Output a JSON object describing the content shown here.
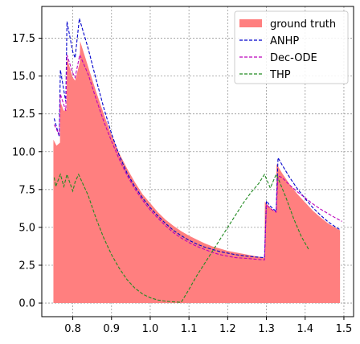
{
  "chart_data": {
    "type": "line",
    "xlim": [
      0.72,
      1.525
    ],
    "ylim": [
      -0.9,
      19.6
    ],
    "xticks": [
      {
        "value": 0.8,
        "label": "0.8"
      },
      {
        "value": 0.9,
        "label": "0.9"
      },
      {
        "value": 1.0,
        "label": "1.0"
      },
      {
        "value": 1.1,
        "label": "1.1"
      },
      {
        "value": 1.2,
        "label": "1.2"
      },
      {
        "value": 1.3,
        "label": "1.3"
      },
      {
        "value": 1.4,
        "label": "1.4"
      },
      {
        "value": 1.5,
        "label": "1.5"
      }
    ],
    "yticks": [
      {
        "value": 0.0,
        "label": "0.0"
      },
      {
        "value": 2.5,
        "label": "2.5"
      },
      {
        "value": 5.0,
        "label": "5.0"
      },
      {
        "value": 7.5,
        "label": "7.5"
      },
      {
        "value": 10.0,
        "label": "10.0"
      },
      {
        "value": 12.5,
        "label": "12.5"
      },
      {
        "value": 15.0,
        "label": "15.0"
      },
      {
        "value": 17.5,
        "label": "17.5"
      }
    ],
    "grid": true,
    "legend_position": "top-right",
    "series": [
      {
        "name": "ground truth",
        "style": "area",
        "color": "#ff7f7f",
        "points": [
          [
            0.75,
            10.8
          ],
          [
            0.758,
            10.4
          ],
          [
            0.767,
            10.6
          ],
          [
            0.768,
            13.3
          ],
          [
            0.777,
            12.7
          ],
          [
            0.784,
            12.8
          ],
          [
            0.785,
            16.2
          ],
          [
            0.8,
            14.9
          ],
          [
            0.806,
            14.7
          ],
          [
            0.818,
            15.9
          ],
          [
            0.819,
            17.3
          ],
          [
            0.84,
            15.6
          ],
          [
            0.86,
            14.0
          ],
          [
            0.88,
            12.5
          ],
          [
            0.9,
            11.1
          ],
          [
            0.92,
            9.9
          ],
          [
            0.94,
            8.9
          ],
          [
            0.96,
            8.0
          ],
          [
            0.98,
            7.2
          ],
          [
            1.0,
            6.6
          ],
          [
            1.02,
            6.0
          ],
          [
            1.04,
            5.5
          ],
          [
            1.06,
            5.1
          ],
          [
            1.08,
            4.75
          ],
          [
            1.1,
            4.45
          ],
          [
            1.12,
            4.2
          ],
          [
            1.14,
            3.95
          ],
          [
            1.16,
            3.75
          ],
          [
            1.18,
            3.6
          ],
          [
            1.2,
            3.45
          ],
          [
            1.22,
            3.35
          ],
          [
            1.25,
            3.2
          ],
          [
            1.27,
            3.1
          ],
          [
            1.295,
            3.0
          ],
          [
            1.296,
            6.7
          ],
          [
            1.31,
            6.3
          ],
          [
            1.32,
            6.1
          ],
          [
            1.325,
            6.0
          ],
          [
            1.326,
            9.2
          ],
          [
            1.34,
            8.6
          ],
          [
            1.36,
            7.85
          ],
          [
            1.38,
            7.2
          ],
          [
            1.4,
            6.65
          ],
          [
            1.42,
            6.1
          ],
          [
            1.44,
            5.65
          ],
          [
            1.46,
            5.25
          ],
          [
            1.48,
            4.95
          ],
          [
            1.49,
            4.8
          ]
        ]
      },
      {
        "name": "ANHP",
        "style": "dashed",
        "color": "#0000cc",
        "points": [
          [
            0.752,
            12.2
          ],
          [
            0.765,
            11.0
          ],
          [
            0.768,
            15.4
          ],
          [
            0.782,
            13.3
          ],
          [
            0.785,
            18.6
          ],
          [
            0.8,
            16.6
          ],
          [
            0.806,
            16.2
          ],
          [
            0.817,
            18.8
          ],
          [
            0.84,
            16.8
          ],
          [
            0.86,
            14.8
          ],
          [
            0.88,
            12.9
          ],
          [
            0.9,
            11.2
          ],
          [
            0.92,
            9.75
          ],
          [
            0.94,
            8.6
          ],
          [
            0.96,
            7.7
          ],
          [
            0.98,
            6.95
          ],
          [
            1.0,
            6.3
          ],
          [
            1.02,
            5.75
          ],
          [
            1.04,
            5.25
          ],
          [
            1.06,
            4.8
          ],
          [
            1.08,
            4.45
          ],
          [
            1.1,
            4.15
          ],
          [
            1.12,
            3.9
          ],
          [
            1.14,
            3.7
          ],
          [
            1.16,
            3.55
          ],
          [
            1.18,
            3.4
          ],
          [
            1.2,
            3.3
          ],
          [
            1.22,
            3.2
          ],
          [
            1.25,
            3.1
          ],
          [
            1.27,
            3.05
          ],
          [
            1.295,
            3.0
          ],
          [
            1.3,
            6.75
          ],
          [
            1.31,
            6.4
          ],
          [
            1.325,
            6.05
          ],
          [
            1.33,
            9.6
          ],
          [
            1.34,
            9.15
          ],
          [
            1.36,
            8.3
          ],
          [
            1.38,
            7.55
          ],
          [
            1.4,
            6.9
          ],
          [
            1.42,
            6.3
          ],
          [
            1.44,
            5.8
          ],
          [
            1.46,
            5.35
          ],
          [
            1.48,
            5.0
          ],
          [
            1.49,
            4.85
          ]
        ]
      },
      {
        "name": "Dec-ODE",
        "style": "dashed",
        "color": "#bb00bb",
        "points": [
          [
            0.752,
            11.8
          ],
          [
            0.765,
            11.1
          ],
          [
            0.768,
            13.8
          ],
          [
            0.782,
            12.7
          ],
          [
            0.785,
            16.4
          ],
          [
            0.8,
            15.2
          ],
          [
            0.806,
            14.9
          ],
          [
            0.818,
            16.4
          ],
          [
            0.84,
            15.1
          ],
          [
            0.86,
            13.5
          ],
          [
            0.88,
            12.0
          ],
          [
            0.9,
            10.7
          ],
          [
            0.92,
            9.5
          ],
          [
            0.94,
            8.45
          ],
          [
            0.96,
            7.55
          ],
          [
            0.98,
            6.8
          ],
          [
            1.0,
            6.15
          ],
          [
            1.02,
            5.6
          ],
          [
            1.04,
            5.1
          ],
          [
            1.06,
            4.65
          ],
          [
            1.08,
            4.3
          ],
          [
            1.1,
            4.0
          ],
          [
            1.12,
            3.75
          ],
          [
            1.14,
            3.55
          ],
          [
            1.16,
            3.35
          ],
          [
            1.18,
            3.2
          ],
          [
            1.2,
            3.1
          ],
          [
            1.22,
            3.0
          ],
          [
            1.25,
            2.95
          ],
          [
            1.27,
            2.9
          ],
          [
            1.295,
            2.85
          ],
          [
            1.3,
            6.5
          ],
          [
            1.31,
            6.25
          ],
          [
            1.325,
            6.0
          ],
          [
            1.33,
            8.4
          ],
          [
            1.34,
            8.3
          ],
          [
            1.36,
            7.8
          ],
          [
            1.38,
            7.35
          ],
          [
            1.4,
            6.95
          ],
          [
            1.42,
            6.55
          ],
          [
            1.44,
            6.2
          ],
          [
            1.46,
            5.9
          ],
          [
            1.48,
            5.6
          ],
          [
            1.495,
            5.4
          ]
        ]
      },
      {
        "name": "THP",
        "style": "dashed",
        "color": "#228b22",
        "points": [
          [
            0.752,
            8.3
          ],
          [
            0.756,
            7.7
          ],
          [
            0.768,
            8.5
          ],
          [
            0.777,
            7.7
          ],
          [
            0.785,
            8.5
          ],
          [
            0.8,
            7.4
          ],
          [
            0.806,
            8.0
          ],
          [
            0.815,
            8.5
          ],
          [
            0.84,
            7.1
          ],
          [
            0.86,
            5.6
          ],
          [
            0.88,
            4.3
          ],
          [
            0.9,
            3.2
          ],
          [
            0.92,
            2.3
          ],
          [
            0.94,
            1.55
          ],
          [
            0.96,
            1.0
          ],
          [
            0.98,
            0.6
          ],
          [
            1.0,
            0.35
          ],
          [
            1.02,
            0.2
          ],
          [
            1.04,
            0.12
          ],
          [
            1.06,
            0.08
          ],
          [
            1.08,
            0.05
          ],
          [
            1.1,
            0.9
          ],
          [
            1.12,
            1.8
          ],
          [
            1.14,
            2.6
          ],
          [
            1.16,
            3.4
          ],
          [
            1.18,
            4.2
          ],
          [
            1.2,
            5.0
          ],
          [
            1.22,
            5.8
          ],
          [
            1.24,
            6.6
          ],
          [
            1.26,
            7.3
          ],
          [
            1.28,
            7.9
          ],
          [
            1.295,
            8.5
          ],
          [
            1.31,
            7.6
          ],
          [
            1.325,
            8.5
          ],
          [
            1.33,
            8.25
          ],
          [
            1.35,
            7.0
          ],
          [
            1.37,
            5.6
          ],
          [
            1.39,
            4.4
          ],
          [
            1.41,
            3.5
          ]
        ]
      }
    ]
  }
}
